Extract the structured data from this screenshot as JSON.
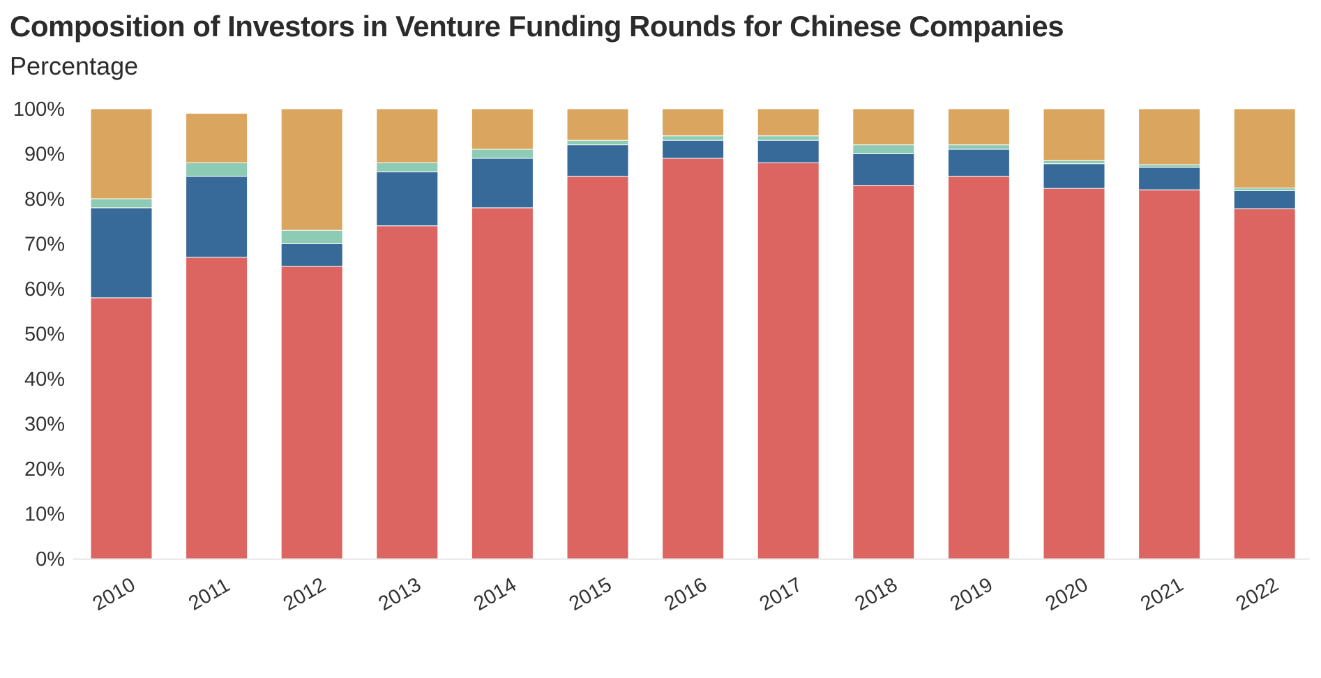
{
  "title": "Composition of Investors in Venture Funding Rounds for Chinese Companies",
  "subtitle": "Percentage",
  "colors": {
    "red": "#dc6561",
    "blue": "#376a99",
    "teal": "#8ecbb5",
    "gold": "#d9a55f",
    "axis": "#dddddd"
  },
  "chart_data": {
    "type": "bar",
    "stacked": true,
    "categories": [
      "2010",
      "2011",
      "2012",
      "2013",
      "2014",
      "2015",
      "2016",
      "2017",
      "2018",
      "2019",
      "2020",
      "2021",
      "2022"
    ],
    "series": [
      {
        "color": "#dc6561",
        "values": [
          58,
          67,
          65,
          74,
          78,
          85,
          89,
          88,
          83,
          85,
          82.3,
          82,
          77.8
        ]
      },
      {
        "color": "#376a99",
        "values": [
          20,
          18,
          5,
          12,
          11,
          7,
          4,
          5,
          7,
          6,
          5.5,
          5,
          4
        ]
      },
      {
        "color": "#8ecbb5",
        "values": [
          2,
          3,
          3,
          2,
          2,
          1,
          1,
          1,
          2,
          1,
          0.7,
          0.6,
          0.6
        ]
      },
      {
        "color": "#d9a55f",
        "values": [
          20,
          11,
          27,
          12,
          9,
          7,
          6,
          6,
          8,
          8,
          11.5,
          12.4,
          17.6
        ]
      }
    ],
    "yticks": [
      "0%",
      "10%",
      "20%",
      "30%",
      "40%",
      "50%",
      "60%",
      "70%",
      "80%",
      "90%",
      "100%"
    ],
    "ylim": [
      0,
      100
    ],
    "grid": false,
    "legend": "none"
  }
}
